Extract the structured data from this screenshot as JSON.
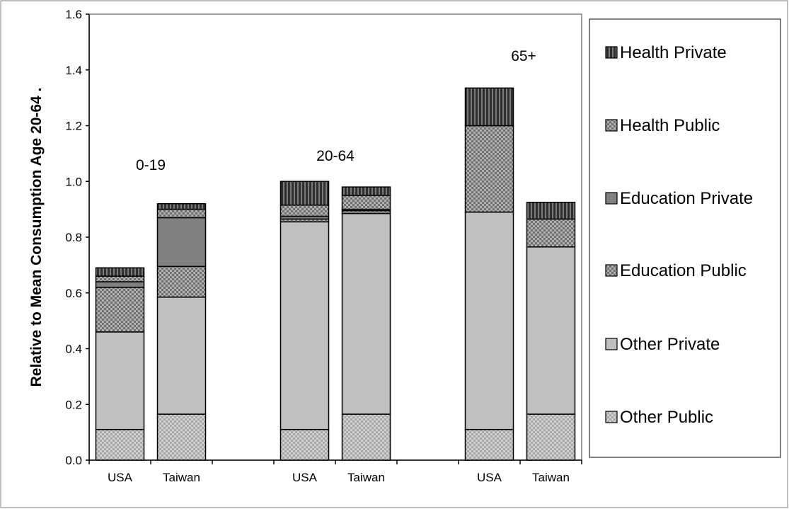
{
  "chart_data": {
    "type": "bar",
    "stacked": true,
    "ylabel": "Relative to Mean Consumption Age 20-64   .",
    "ylim": [
      0,
      1.6
    ],
    "y_ticks": [
      "0.0",
      "0.2",
      "0.4",
      "0.6",
      "0.8",
      "1.0",
      "1.2",
      "1.4",
      "1.6"
    ],
    "grid": false,
    "legend_position": "right",
    "groups": [
      {
        "label": "0-19",
        "categories": [
          "USA",
          "Taiwan"
        ]
      },
      {
        "label": "20-64",
        "categories": [
          "USA",
          "Taiwan"
        ]
      },
      {
        "label": "65+",
        "categories": [
          "USA",
          "Taiwan"
        ]
      }
    ],
    "categories": [
      "USA",
      "Taiwan",
      "USA",
      "Taiwan",
      "USA",
      "Taiwan"
    ],
    "series": [
      {
        "name": "Other Public",
        "pattern": "checker-light",
        "values": [
          0.11,
          0.165,
          0.11,
          0.165,
          0.11,
          0.165
        ]
      },
      {
        "name": "Other Private",
        "pattern": "solid-light",
        "values": [
          0.35,
          0.42,
          0.745,
          0.72,
          0.78,
          0.6
        ]
      },
      {
        "name": "Education Public",
        "pattern": "checker-dark",
        "values": [
          0.16,
          0.11,
          0.01,
          0.01,
          0.0,
          0.0
        ]
      },
      {
        "name": "Education Private",
        "pattern": "solid-dark",
        "values": [
          0.02,
          0.175,
          0.01,
          0.005,
          0.0,
          0.0
        ]
      },
      {
        "name": "Health Public",
        "pattern": "checker-dark",
        "values": [
          0.02,
          0.03,
          0.04,
          0.05,
          0.31,
          0.1
        ]
      },
      {
        "name": "Health Private",
        "pattern": "vertical-stripes",
        "values": [
          0.03,
          0.02,
          0.085,
          0.03,
          0.135,
          0.06
        ]
      }
    ],
    "legend_order": [
      "Health Private",
      "Health Public",
      "Education Private",
      "Education Public",
      "Other Private",
      "Other Public"
    ]
  }
}
